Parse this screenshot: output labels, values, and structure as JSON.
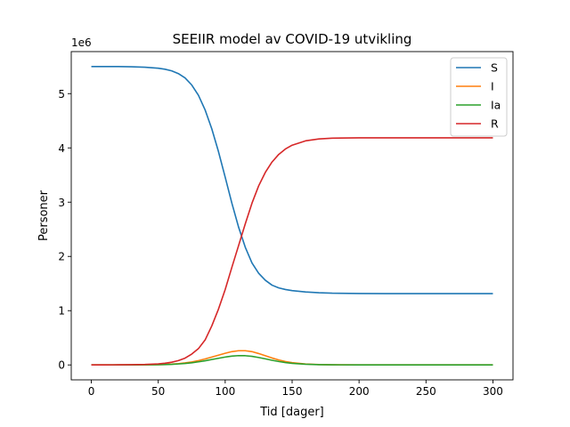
{
  "chart_data": {
    "type": "line",
    "title": "SEEIIR model av COVID-19 utvikling",
    "xlabel": "Tid [dager]",
    "ylabel": "Personer",
    "y_offset_label": "1e6",
    "xlim": [
      -15,
      315
    ],
    "ylim": [
      -0.275,
      5.775
    ],
    "xticks": [
      0,
      50,
      100,
      150,
      200,
      250,
      300
    ],
    "yticks": [
      0,
      1,
      2,
      3,
      4,
      5
    ],
    "grid": false,
    "legend_position": "top-right",
    "x": [
      0,
      10,
      20,
      30,
      40,
      50,
      55,
      60,
      65,
      70,
      75,
      80,
      85,
      90,
      95,
      100,
      105,
      110,
      115,
      120,
      125,
      130,
      135,
      140,
      145,
      150,
      160,
      170,
      180,
      200,
      220,
      250,
      300
    ],
    "series": [
      {
        "name": "S",
        "color": "#1f77b4",
        "values": [
          5.5,
          5.5,
          5.499,
          5.495,
          5.487,
          5.468,
          5.45,
          5.42,
          5.37,
          5.29,
          5.16,
          4.97,
          4.7,
          4.35,
          3.93,
          3.46,
          2.98,
          2.54,
          2.17,
          1.88,
          1.69,
          1.56,
          1.47,
          1.42,
          1.39,
          1.37,
          1.345,
          1.33,
          1.322,
          1.317,
          1.315,
          1.315,
          1.315
        ]
      },
      {
        "name": "I",
        "color": "#ff7f0e",
        "values": [
          0,
          0,
          0,
          0.001,
          0.002,
          0.005,
          0.009,
          0.015,
          0.024,
          0.037,
          0.055,
          0.08,
          0.11,
          0.145,
          0.18,
          0.215,
          0.245,
          0.262,
          0.262,
          0.245,
          0.21,
          0.17,
          0.128,
          0.092,
          0.063,
          0.042,
          0.018,
          0.007,
          0.003,
          0.0005,
          0,
          0,
          0
        ]
      },
      {
        "name": "Ia",
        "color": "#2ca02c",
        "values": [
          0,
          0,
          0,
          0.001,
          0.002,
          0.004,
          0.007,
          0.011,
          0.018,
          0.027,
          0.04,
          0.057,
          0.077,
          0.1,
          0.123,
          0.145,
          0.163,
          0.172,
          0.17,
          0.158,
          0.137,
          0.112,
          0.086,
          0.063,
          0.044,
          0.03,
          0.013,
          0.005,
          0.002,
          0.0004,
          0,
          0,
          0
        ]
      },
      {
        "name": "R",
        "color": "#d62728",
        "values": [
          0,
          0.001,
          0.002,
          0.004,
          0.009,
          0.02,
          0.032,
          0.05,
          0.08,
          0.125,
          0.2,
          0.3,
          0.46,
          0.72,
          1.03,
          1.39,
          1.8,
          2.2,
          2.6,
          2.98,
          3.3,
          3.55,
          3.74,
          3.88,
          3.98,
          4.05,
          4.13,
          4.165,
          4.18,
          4.185,
          4.185,
          4.185,
          4.185
        ]
      }
    ]
  }
}
